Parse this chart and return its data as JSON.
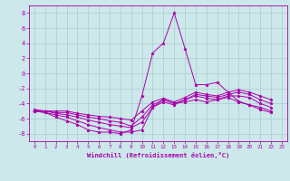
{
  "background_color": "#cce8ea",
  "grid_color": "#aacccc",
  "line_color": "#aa00aa",
  "xlim": [
    -0.5,
    23.5
  ],
  "ylim": [
    -9,
    9
  ],
  "xticks": [
    0,
    1,
    2,
    3,
    4,
    5,
    6,
    7,
    8,
    9,
    10,
    11,
    12,
    13,
    14,
    15,
    16,
    17,
    18,
    19,
    20,
    21,
    22,
    23
  ],
  "yticks": [
    -8,
    -6,
    -4,
    -2,
    0,
    2,
    4,
    6,
    8
  ],
  "xlabel": "Windchill (Refroidissement éolien,°C)",
  "lines": [
    [
      -5.0,
      -5.2,
      -5.8,
      -6.3,
      -6.8,
      -7.5,
      -7.8,
      -7.8,
      -8.0,
      -7.5,
      -3.0,
      2.7,
      4.0,
      8.0,
      3.3,
      -1.5,
      -1.5,
      -1.2,
      -2.5,
      -3.7,
      -4.2,
      -4.5,
      -5.0
    ],
    [
      -5.0,
      -5.2,
      -5.5,
      -5.8,
      -6.3,
      -6.8,
      -7.2,
      -7.5,
      -7.8,
      -7.8,
      -7.5,
      -4.5,
      -3.5,
      -4.0,
      -3.8,
      -3.5,
      -3.8,
      -3.5,
      -3.2,
      -3.8,
      -4.2,
      -4.8,
      -5.2
    ],
    [
      -5.0,
      -5.0,
      -5.3,
      -5.5,
      -5.8,
      -6.2,
      -6.5,
      -6.8,
      -7.0,
      -7.2,
      -6.5,
      -4.5,
      -3.8,
      -4.2,
      -3.5,
      -3.0,
      -3.3,
      -3.5,
      -3.0,
      -3.0,
      -3.2,
      -4.0,
      -4.5
    ],
    [
      -5.0,
      -5.0,
      -5.2,
      -5.2,
      -5.5,
      -5.8,
      -6.0,
      -6.3,
      -6.5,
      -7.0,
      -5.8,
      -4.2,
      -3.5,
      -4.0,
      -3.5,
      -2.8,
      -3.0,
      -3.2,
      -2.8,
      -2.5,
      -2.8,
      -3.5,
      -4.0
    ],
    [
      -4.8,
      -5.0,
      -5.0,
      -5.0,
      -5.3,
      -5.5,
      -5.7,
      -5.8,
      -6.0,
      -6.2,
      -5.0,
      -3.8,
      -3.3,
      -3.8,
      -3.2,
      -2.5,
      -2.8,
      -3.0,
      -2.5,
      -2.2,
      -2.5,
      -3.0,
      -3.5
    ]
  ]
}
